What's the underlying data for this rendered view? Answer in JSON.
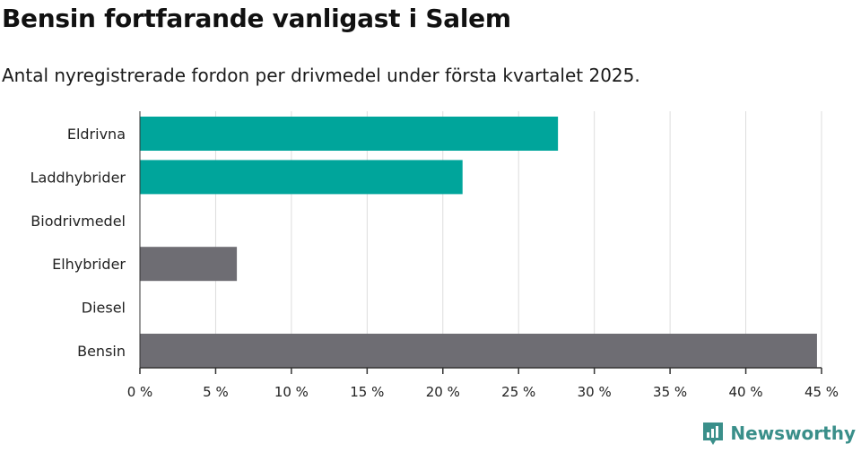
{
  "title": "Bensin fortfarande vanligast i Salem",
  "subtitle": "Antal nyregistrerade fordon per drivmedel under första kvartalet 2025.",
  "brand": {
    "name": "Newsworthy",
    "icon": "newsworthy-logo-icon",
    "color": "#3a8f8a"
  },
  "colors": {
    "accent": "#00a59b",
    "neutral": "#6e6d73",
    "grid": "#dddddd",
    "axis": "#333333"
  },
  "chart_data": {
    "type": "bar",
    "orientation": "horizontal",
    "categories": [
      "Eldrivna",
      "Laddhybrider",
      "Biodrivmedel",
      "Elhybrider",
      "Diesel",
      "Bensin"
    ],
    "values": [
      27.6,
      21.3,
      0,
      6.4,
      0,
      44.7
    ],
    "bar_colors": [
      "#00a59b",
      "#00a59b",
      "#6e6d73",
      "#6e6d73",
      "#6e6d73",
      "#6e6d73"
    ],
    "xlim": [
      0,
      45
    ],
    "xticks": [
      0,
      5,
      10,
      15,
      20,
      25,
      30,
      35,
      40,
      45
    ],
    "xtick_labels": [
      "0 %",
      "5 %",
      "10 %",
      "15 %",
      "20 %",
      "25 %",
      "30 %",
      "35 %",
      "40 %",
      "45 %"
    ],
    "grid": true,
    "legend": "none"
  }
}
